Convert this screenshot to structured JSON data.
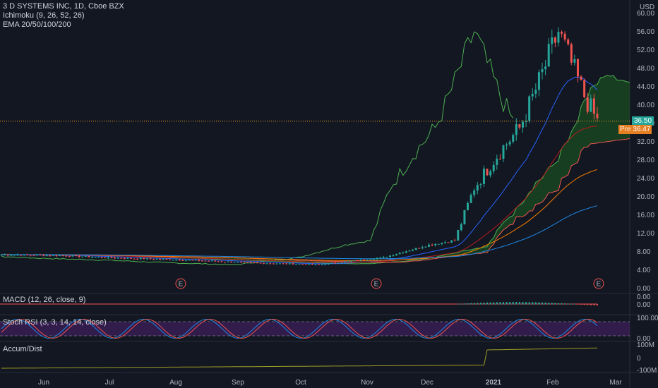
{
  "header": {
    "title": "3 D SYSTEMS INC, 1D, Cboe BZX",
    "ichimoku": "Ichimoku (9, 26, 52, 26)",
    "ema": "EMA 20/50/100/200",
    "currency": "USD"
  },
  "panes": {
    "macd": "MACD (12, 26, close, 9)",
    "stoch": "Stoch RSI (3, 3, 14, 14, close)",
    "accum": "Accum/Dist"
  },
  "tags": {
    "last_price": "36.50",
    "pre_label": "Pre",
    "pre_price": "36.47"
  },
  "colors": {
    "background": "#131722",
    "up": "#26a69a",
    "down": "#ef5350",
    "ema20": "#2962ff",
    "ema50": "#b71c1c",
    "ema100": "#f57c00",
    "ema200": "#1e88e5",
    "lagging": "#4caf50",
    "cloud_green": "#1b5e20",
    "cloud_red": "#7f0000",
    "stoch_bg": "#4a2170",
    "accum": "#9e9d24",
    "last_tag": "#26a69a",
    "pre_tag": "#e67e22"
  },
  "chart_data": {
    "type": "candlestick",
    "ylim": [
      0,
      60
    ],
    "price_ticks": [
      "60.00",
      "56.00",
      "52.00",
      "48.00",
      "44.00",
      "40.00",
      "36.00",
      "32.00",
      "28.00",
      "24.00",
      "20.00",
      "16.00",
      "12.00",
      "8.00",
      "4.00",
      "0.00"
    ],
    "x_labels": [
      "Jun",
      "Jul",
      "Aug",
      "Sep",
      "Oct",
      "Nov",
      "Dec",
      "2021",
      "Feb",
      "Mar"
    ],
    "earnings_markers": [
      "E",
      "E",
      "E"
    ],
    "macd_ticks": [
      "0.00",
      "0.00"
    ],
    "stoch_ticks": [
      "100.00",
      "0.00"
    ],
    "accum_ticks": [
      "100M",
      "0",
      "-100M"
    ],
    "close_path": [
      {
        "month": "May",
        "close": 7.4
      },
      {
        "month": "Jun",
        "close": 7.2
      },
      {
        "month": "Jul",
        "close": 6.6
      },
      {
        "month": "Aug",
        "close": 6.2
      },
      {
        "month": "Sep",
        "close": 5.6
      },
      {
        "month": "Oct",
        "close": 5.2
      },
      {
        "month": "Nov",
        "close": 6.8
      },
      {
        "month": "Dec",
        "close": 9.5
      },
      {
        "month": "Dec-end",
        "close": 10.5
      },
      {
        "month": "Jan-early",
        "close": 22
      },
      {
        "month": "Jan-mid",
        "close": 30
      },
      {
        "month": "Jan-end",
        "close": 35
      },
      {
        "month": "Feb-early",
        "close": 45
      },
      {
        "month": "Feb-mid",
        "close": 56
      },
      {
        "month": "Feb-late",
        "close": 42
      },
      {
        "month": "Feb-end",
        "close": 36.5
      }
    ]
  }
}
